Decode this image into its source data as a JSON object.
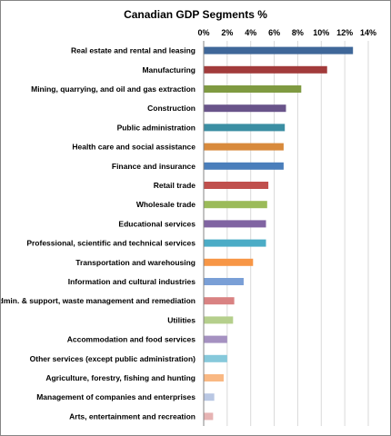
{
  "chart_data": {
    "type": "bar",
    "orientation": "horizontal",
    "title": "Canadian GDP Segments %",
    "xlabel": "",
    "ylabel": "",
    "xlim": [
      0,
      14
    ],
    "x_ticks": [
      "0%",
      "2%",
      "4%",
      "6%",
      "8%",
      "10%",
      "12%",
      "14%"
    ],
    "x_tick_values": [
      0,
      2,
      4,
      6,
      8,
      10,
      12,
      14
    ],
    "x_axis_position": "top",
    "grid": true,
    "legend": "none",
    "categories": [
      "Real estate and rental and leasing",
      "Manufacturing",
      "Mining, quarrying, and oil and gas extraction",
      "Construction",
      "Public administration",
      "Health care and social assistance",
      "Finance and insurance",
      "Retail trade",
      "Wholesale trade",
      "Educational services",
      "Professional, scientific and technical services",
      "Transportation and warehousing",
      "Information and cultural industries",
      "Admin. & support, waste management and remediation",
      "Utilities",
      "Accommodation and food services",
      "Other services (except public administration)",
      "Agriculture, forestry, fishing and hunting",
      "Management of companies and enterprises",
      "Arts, entertainment and recreation"
    ],
    "values": [
      12.7,
      10.5,
      8.3,
      7.0,
      6.9,
      6.8,
      6.8,
      5.5,
      5.4,
      5.3,
      5.3,
      4.2,
      3.4,
      2.6,
      2.5,
      2.0,
      2.0,
      1.7,
      0.9,
      0.8
    ],
    "colors": [
      "#3f6799",
      "#a23b3b",
      "#7f9a41",
      "#69548a",
      "#3b8ea3",
      "#d88a3c",
      "#4a7ebb",
      "#c0504d",
      "#9bbb59",
      "#8064a2",
      "#4bacc6",
      "#f79646",
      "#7a9fd6",
      "#d98282",
      "#b5cf8c",
      "#a591c1",
      "#86c9db",
      "#f9b883",
      "#b9c7e3",
      "#e6b3b3"
    ]
  }
}
